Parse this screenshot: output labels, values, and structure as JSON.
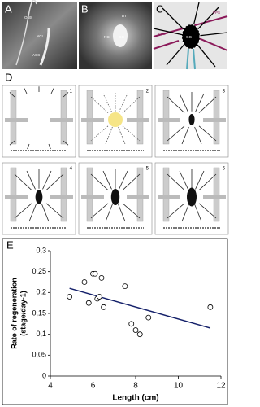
{
  "panel_a": {
    "label": "A",
    "annotations": [
      "ONS",
      "NCI",
      "ACS"
    ]
  },
  "panel_b": {
    "label": "B",
    "annotations": [
      "DT",
      "NCI",
      "GG"
    ]
  },
  "panel_c": {
    "label": "C",
    "annotations": [
      "PPS",
      "FPS",
      "GG"
    ]
  },
  "panel_d": {
    "label": "D",
    "subpanels": [
      "1",
      "2",
      "3",
      "4",
      "5",
      "6"
    ]
  },
  "panel_e": {
    "label": "E"
  },
  "chart_data": {
    "type": "scatter",
    "xlabel": "Length (cm)",
    "ylabel": [
      "Rate of regeneration",
      "(stage/day-1)"
    ],
    "x": [
      4.9,
      5.6,
      5.8,
      6.0,
      6.1,
      6.2,
      6.3,
      6.4,
      6.5,
      7.5,
      7.8,
      8.0,
      8.2,
      8.6,
      11.5
    ],
    "values": [
      0.19,
      0.225,
      0.175,
      0.245,
      0.245,
      0.185,
      0.19,
      0.235,
      0.165,
      0.215,
      0.125,
      0.11,
      0.1,
      0.14,
      0.165
    ],
    "trendline": {
      "x": [
        4.9,
        11.5
      ],
      "values": [
        0.21,
        0.115
      ],
      "color": "#14206a"
    },
    "xlim": [
      4,
      12
    ],
    "xticks": [
      4,
      6,
      8,
      10,
      12
    ],
    "ylim": [
      0,
      0.3
    ],
    "yticks": [
      0,
      {
        "value": 0.05,
        "label": "0,05"
      },
      {
        "value": 0.1,
        "label": "0,1"
      },
      {
        "value": 0.15,
        "label": "0,15"
      },
      {
        "value": 0.2,
        "label": "0,2"
      },
      {
        "value": 0.25,
        "label": "0,25"
      },
      {
        "value": 0.3,
        "label": "0,3"
      }
    ]
  }
}
